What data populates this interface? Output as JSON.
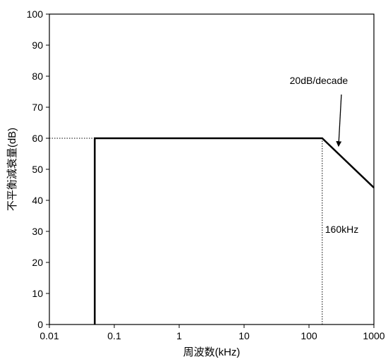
{
  "chart_data": {
    "type": "line",
    "xlabel": "周波数(kHz)",
    "ylabel": "不平衡減衰量(dB)",
    "x_scale": "log",
    "xlim": [
      0.01,
      1000
    ],
    "ylim": [
      0,
      100
    ],
    "x_ticks": [
      {
        "value": 0.01,
        "label": "0.01"
      },
      {
        "value": 0.1,
        "label": "0.1"
      },
      {
        "value": 1,
        "label": "1"
      },
      {
        "value": 10,
        "label": "10"
      },
      {
        "value": 100,
        "label": "100"
      },
      {
        "value": 1000,
        "label": "1000"
      }
    ],
    "y_ticks": [
      {
        "value": 0,
        "label": "0"
      },
      {
        "value": 10,
        "label": "10"
      },
      {
        "value": 20,
        "label": "20"
      },
      {
        "value": 30,
        "label": "30"
      },
      {
        "value": 40,
        "label": "40"
      },
      {
        "value": 50,
        "label": "50"
      },
      {
        "value": 60,
        "label": "60"
      },
      {
        "value": 70,
        "label": "70"
      },
      {
        "value": 80,
        "label": "80"
      },
      {
        "value": 90,
        "label": "90"
      },
      {
        "value": 100,
        "label": "100"
      }
    ],
    "grid": false,
    "legend": "none",
    "series": [
      {
        "x": [
          0.05,
          0.05,
          160,
          1000
        ],
        "y": [
          0,
          60,
          60,
          44.08
        ],
        "color": "#000000"
      }
    ],
    "guides": [
      {
        "x": [
          0.01,
          0.05
        ],
        "y": [
          60,
          60
        ],
        "style": "dotted"
      },
      {
        "x": [
          160,
          160
        ],
        "y": [
          0,
          60
        ],
        "style": "dotted"
      }
    ],
    "annotations": [
      {
        "text": "20dB/decade",
        "x": 300,
        "y": 75,
        "arrow_to": {
          "x": 300,
          "y": 57
        }
      },
      {
        "text": "160kHz",
        "x": 160,
        "y": 30
      }
    ]
  }
}
